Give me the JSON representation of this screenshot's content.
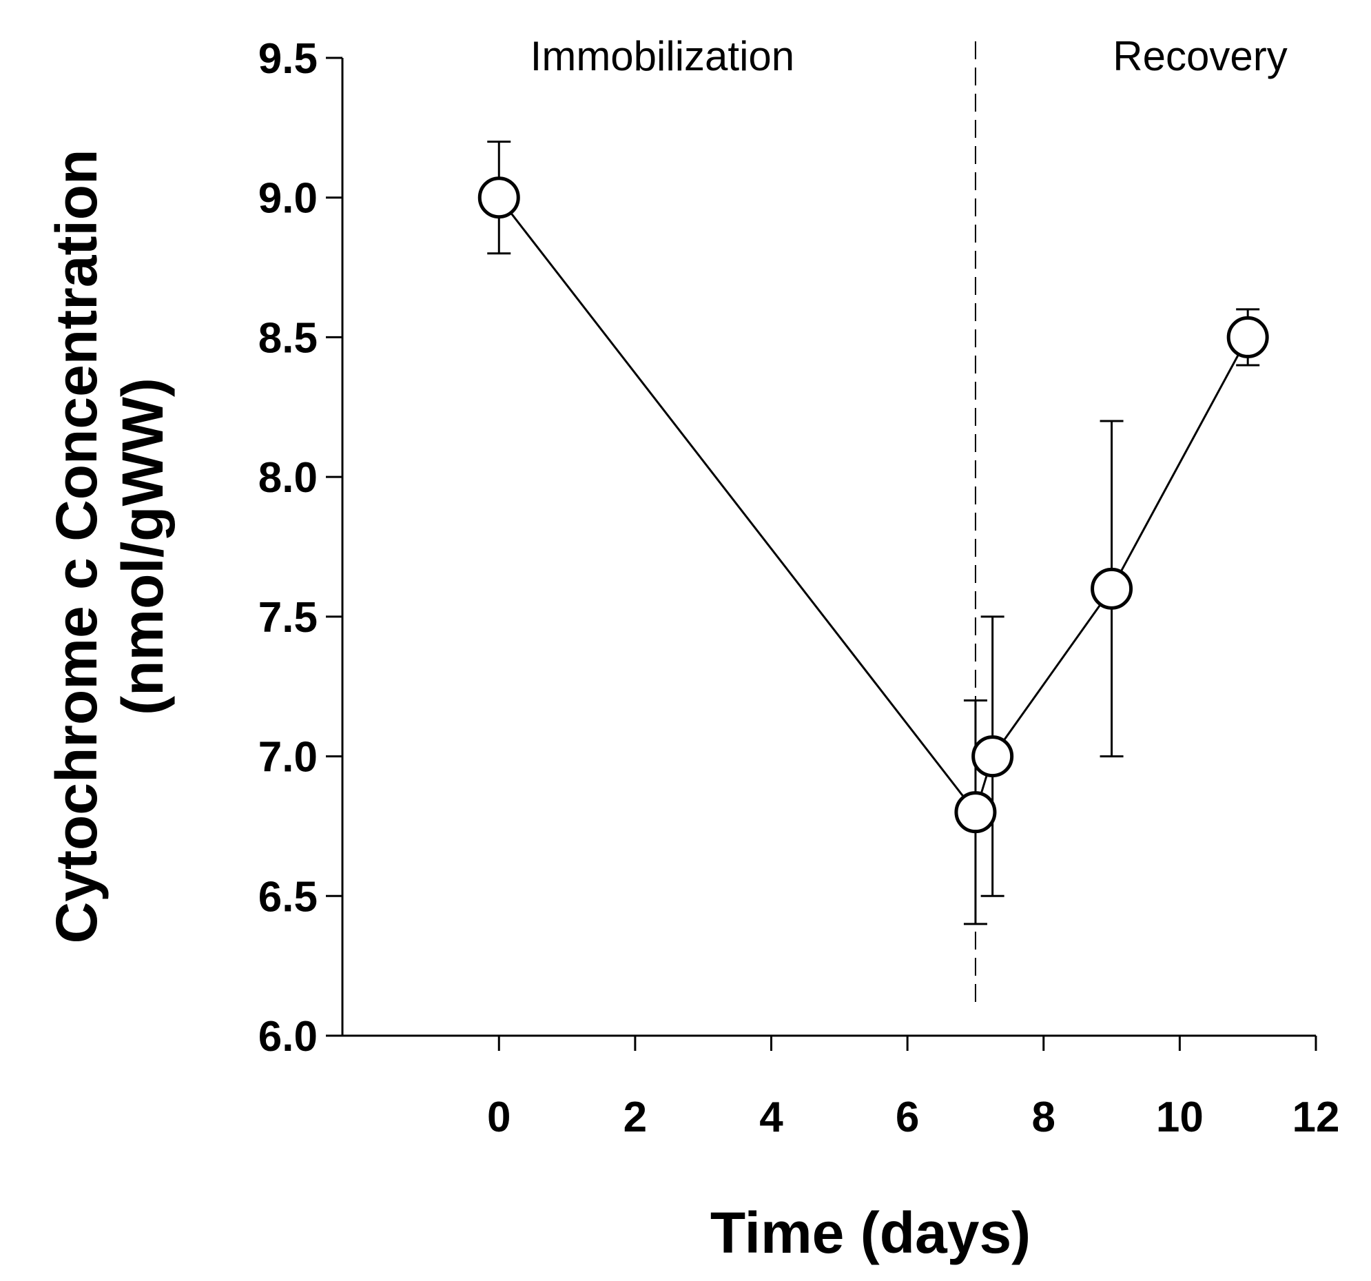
{
  "chart_data": {
    "type": "line",
    "xlabel": "Time (days)",
    "ylabel_line1": "Cytochrome c Concentration",
    "ylabel_line2": "(nmol/gWW)",
    "xlim": [
      -2.3,
      12
    ],
    "ylim": [
      6.0,
      9.5
    ],
    "x_ticks": [
      0,
      2,
      4,
      6,
      8,
      10,
      12
    ],
    "y_ticks": [
      6.0,
      6.5,
      7.0,
      7.5,
      8.0,
      8.5,
      9.0,
      9.5
    ],
    "y_tick_labels": [
      "6.0",
      "6.5",
      "7.0",
      "7.5",
      "8.0",
      "8.5",
      "9.0",
      "9.5"
    ],
    "grid": false,
    "series": [
      {
        "x": [
          0,
          7,
          7.25,
          9,
          11
        ],
        "values": [
          9.0,
          6.8,
          7.0,
          7.6,
          8.5
        ],
        "error": [
          0.2,
          0.4,
          0.5,
          0.6,
          0.1
        ]
      }
    ],
    "phase_divider_x": 7,
    "phase_labels": [
      {
        "text": "Immobilization",
        "x": 2.4
      },
      {
        "text": "Recovery",
        "x": 10.3
      }
    ],
    "colors": {
      "line": "#000000",
      "marker_fill": "#ffffff"
    }
  }
}
